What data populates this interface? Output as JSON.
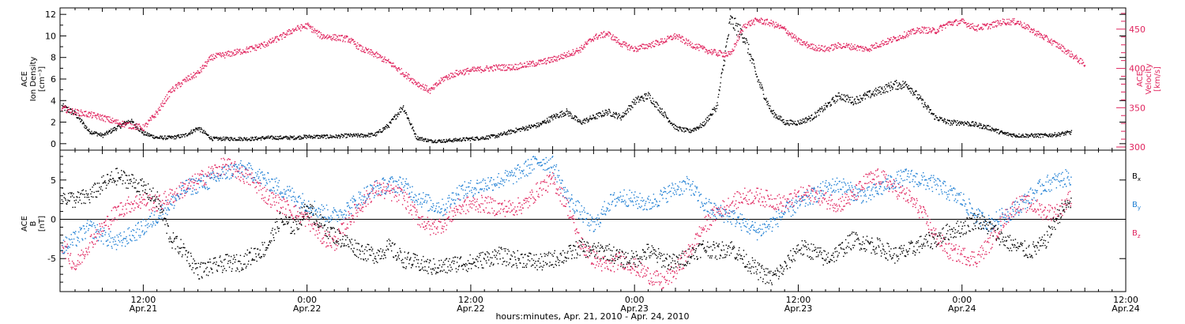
{
  "colors": {
    "black": "#000000",
    "red": "#e0245e",
    "blue": "#1f7fd4"
  },
  "x_axis": {
    "xlabel": "hours:minutes, Apr. 21, 2010 - Apr. 24, 2010",
    "ticks": [
      {
        "time": "12:00",
        "date": "Apr.21"
      },
      {
        "time": "0:00",
        "date": "Apr.22"
      },
      {
        "time": "12:00",
        "date": "Apr.22"
      },
      {
        "time": "0:00",
        "date": "Apr.23"
      },
      {
        "time": "12:00",
        "date": "Apr.23"
      },
      {
        "time": "0:00",
        "date": "Apr.24"
      },
      {
        "time": "12:00",
        "date": "Apr.24"
      }
    ]
  },
  "chart_data": [
    {
      "type": "scatter",
      "ylabel_left": [
        "ACE",
        "Ion Density",
        "[cm⁻³]"
      ],
      "ylabel_right": [
        "ACE",
        "Velocity",
        "[km/s]"
      ],
      "x_unit": "hours since 2010-04-21 00:00",
      "xlim": [
        5.9,
        84.0
      ],
      "ylim_left": [
        -0.6,
        12.6
      ],
      "yticks_left": [
        "0",
        "2",
        "4",
        "6",
        "8",
        "10",
        "12"
      ],
      "ylim_right": [
        296,
        477
      ],
      "yticks_right": [
        "300",
        "350",
        "400",
        "450"
      ],
      "grid": false,
      "series": [
        {
          "name": "Ion Density",
          "color": "black",
          "axis": "left",
          "x": [
            6,
            7,
            8,
            9,
            10,
            11,
            12,
            13,
            14,
            15,
            16,
            17,
            18,
            19,
            20,
            21,
            22,
            23,
            24,
            25,
            26,
            27,
            28,
            29,
            30,
            31,
            32,
            33,
            34,
            35,
            36,
            37,
            38,
            39,
            40,
            41,
            42,
            43,
            44,
            45,
            46,
            47,
            48,
            49,
            50,
            51,
            52,
            53,
            54,
            55,
            56,
            57,
            58,
            59,
            60,
            61,
            62,
            63,
            64,
            65,
            66,
            67,
            68,
            69,
            70,
            71,
            72,
            73,
            74,
            75,
            76,
            77,
            78,
            79,
            80
          ],
          "y": [
            3.5,
            2.8,
            1.2,
            0.8,
            1.5,
            2.2,
            1.0,
            0.6,
            0.6,
            0.8,
            1.5,
            0.5,
            0.5,
            0.5,
            0.5,
            0.6,
            0.6,
            0.6,
            0.7,
            0.7,
            0.7,
            0.8,
            0.8,
            0.9,
            1.8,
            3.5,
            0.6,
            0.3,
            0.3,
            0.4,
            0.5,
            0.6,
            0.8,
            1.2,
            1.5,
            1.8,
            2.5,
            3.0,
            2.0,
            2.5,
            3.0,
            2.5,
            4.0,
            4.5,
            3.0,
            1.5,
            1.2,
            1.8,
            3.5,
            11.5,
            10.0,
            6.0,
            3.0,
            2.0,
            2.0,
            2.5,
            3.5,
            4.5,
            4.0,
            4.5,
            5.0,
            5.5,
            5.5,
            4.0,
            2.5,
            2.0,
            2.0,
            1.8,
            1.5,
            1.0,
            0.8,
            0.8,
            0.8,
            0.9,
            1.1
          ]
        },
        {
          "name": "Velocity",
          "color": "red",
          "axis": "right",
          "x": [
            6,
            7,
            8,
            9,
            10,
            11,
            12,
            13,
            14,
            15,
            16,
            17,
            18,
            19,
            20,
            21,
            22,
            23,
            24,
            25,
            26,
            27,
            28,
            29,
            30,
            31,
            32,
            33,
            34,
            35,
            36,
            37,
            38,
            39,
            40,
            41,
            42,
            43,
            44,
            45,
            46,
            47,
            48,
            49,
            50,
            51,
            52,
            53,
            54,
            55,
            56,
            57,
            58,
            59,
            60,
            61,
            62,
            63,
            64,
            65,
            66,
            67,
            68,
            69,
            70,
            71,
            72,
            73,
            74,
            75,
            76,
            77,
            78,
            79,
            80,
            81
          ],
          "y": [
            350,
            345,
            342,
            338,
            332,
            328,
            325,
            345,
            372,
            385,
            395,
            415,
            418,
            422,
            426,
            432,
            440,
            450,
            455,
            442,
            440,
            438,
            425,
            418,
            408,
            395,
            382,
            372,
            388,
            395,
            398,
            400,
            402,
            402,
            405,
            408,
            412,
            418,
            425,
            440,
            445,
            432,
            425,
            430,
            435,
            442,
            432,
            425,
            420,
            418,
            455,
            462,
            458,
            450,
            435,
            428,
            425,
            430,
            428,
            425,
            432,
            438,
            445,
            450,
            448,
            458,
            460,
            452,
            455,
            460,
            460,
            450,
            440,
            430,
            418,
            405
          ]
        }
      ]
    },
    {
      "type": "scatter",
      "ylabel": [
        "ACE",
        "B",
        "[nT]"
      ],
      "x_unit": "hours since 2010-04-21 00:00",
      "xlim": [
        5.9,
        84.0
      ],
      "ylim": [
        -9.2,
        8.8
      ],
      "yticks": [
        "-5",
        "0",
        "5"
      ],
      "zero_line": true,
      "legend_position": "right",
      "series": [
        {
          "name": "B",
          "subscript": "x",
          "color": "black",
          "x": [
            6,
            7,
            8,
            9,
            10,
            11,
            12,
            13,
            14,
            15,
            16,
            17,
            18,
            19,
            20,
            21,
            22,
            23,
            24,
            25,
            26,
            27,
            28,
            29,
            30,
            31,
            32,
            33,
            34,
            35,
            36,
            37,
            38,
            39,
            40,
            41,
            42,
            43,
            44,
            45,
            46,
            47,
            48,
            49,
            50,
            51,
            52,
            53,
            54,
            55,
            56,
            57,
            58,
            59,
            60,
            61,
            62,
            63,
            64,
            65,
            66,
            67,
            68,
            69,
            70,
            71,
            72,
            73,
            74,
            75,
            76,
            77,
            78,
            79,
            80
          ],
          "y": [
            3,
            2.5,
            3,
            4.5,
            5.5,
            5.0,
            4.0,
            2.5,
            -2.5,
            -4.0,
            -6.5,
            -6.0,
            -5.5,
            -5.5,
            -4.5,
            -3.5,
            0,
            -1.0,
            1.5,
            -0.5,
            -2.0,
            -3.0,
            -4.0,
            -4.5,
            -3.5,
            -5.0,
            -5.5,
            -6.0,
            -6.0,
            -5.5,
            -5.5,
            -5.0,
            -4.5,
            -5.0,
            -5.0,
            -5.5,
            -5.0,
            -4.5,
            -3.5,
            -4.0,
            -4.0,
            -5.0,
            -5.0,
            -4.0,
            -5.0,
            -5.5,
            -4.5,
            -3.5,
            -4.0,
            -3.5,
            -5.0,
            -6.5,
            -7.5,
            -6.0,
            -3.5,
            -4.0,
            -5.0,
            -4.0,
            -2.5,
            -3.0,
            -3.5,
            -4.5,
            -4.0,
            -3.0,
            -2.5,
            -1.5,
            -1.0,
            0.0,
            -1.0,
            -2.5,
            -3.5,
            -4.0,
            -3.0,
            0.5,
            2.5
          ]
        },
        {
          "name": "B",
          "subscript": "y",
          "color": "blue",
          "x": [
            6,
            7,
            8,
            9,
            10,
            11,
            12,
            13,
            14,
            15,
            16,
            17,
            18,
            19,
            20,
            21,
            22,
            23,
            24,
            25,
            26,
            27,
            28,
            29,
            30,
            31,
            32,
            33,
            34,
            35,
            36,
            37,
            38,
            39,
            40,
            41,
            42,
            43,
            44,
            45,
            46,
            47,
            48,
            49,
            50,
            51,
            52,
            53,
            54,
            55,
            56,
            57,
            58,
            59,
            60,
            61,
            62,
            63,
            64,
            65,
            66,
            67,
            68,
            69,
            70,
            71,
            72,
            73,
            74,
            75,
            76,
            77,
            78,
            79,
            80
          ],
          "y": [
            -3.5,
            -2.5,
            -1.0,
            -2.0,
            -3.0,
            -2.0,
            -1.0,
            0.5,
            2.0,
            4.0,
            4.5,
            5.0,
            6.0,
            6.5,
            6.0,
            5.0,
            4.0,
            3.0,
            2.0,
            1.0,
            0.5,
            1.5,
            3.0,
            4.0,
            4.5,
            4.5,
            3.0,
            2.0,
            1.5,
            3.5,
            4.0,
            4.5,
            5.0,
            5.5,
            6.5,
            7.5,
            7.0,
            3.0,
            1.0,
            -1.0,
            2.0,
            3.0,
            2.5,
            2.0,
            3.0,
            4.0,
            4.5,
            2.0,
            1.0,
            0.5,
            -0.5,
            -1.5,
            -0.5,
            1.0,
            2.0,
            3.0,
            4.0,
            4.5,
            3.5,
            3.0,
            4.0,
            5.0,
            5.5,
            5.0,
            4.5,
            3.5,
            2.5,
            0.5,
            -0.5,
            0.5,
            1.5,
            3.0,
            4.5,
            5.0,
            5.5
          ]
        },
        {
          "name": "B",
          "subscript": "z",
          "color": "red",
          "x": [
            6,
            7,
            8,
            9,
            10,
            11,
            12,
            13,
            14,
            15,
            16,
            17,
            18,
            19,
            20,
            21,
            22,
            23,
            24,
            25,
            26,
            27,
            28,
            29,
            30,
            31,
            32,
            33,
            34,
            35,
            36,
            37,
            38,
            39,
            40,
            41,
            42,
            43,
            44,
            45,
            46,
            47,
            48,
            49,
            50,
            51,
            52,
            53,
            54,
            55,
            56,
            57,
            58,
            59,
            60,
            61,
            62,
            63,
            64,
            65,
            66,
            67,
            68,
            69,
            70,
            71,
            72,
            73,
            74,
            75,
            76,
            77,
            78,
            79,
            80
          ],
          "y": [
            -3.0,
            -6.0,
            -3.0,
            -1.0,
            1.0,
            2.0,
            2.5,
            2.0,
            3.0,
            4.0,
            5.0,
            6.0,
            7.0,
            6.0,
            5.0,
            3.0,
            2.0,
            1.0,
            0.0,
            -2.0,
            -3.0,
            0.0,
            2.0,
            4.0,
            3.5,
            3.0,
            0.5,
            -1.0,
            -0.5,
            1.5,
            2.0,
            2.0,
            1.5,
            1.5,
            2.0,
            4.0,
            5.0,
            2.0,
            -3.0,
            -5.0,
            -6.0,
            -5.0,
            -6.0,
            -7.0,
            -8.0,
            -6.5,
            -4.0,
            -1.0,
            1.0,
            2.0,
            3.0,
            3.0,
            2.5,
            2.0,
            3.0,
            3.5,
            2.5,
            2.0,
            3.0,
            5.0,
            5.5,
            4.0,
            3.0,
            1.0,
            -2.0,
            -4.0,
            -4.5,
            -5.0,
            -3.0,
            0.0,
            2.0,
            2.0,
            1.0,
            1.0,
            3.0
          ]
        }
      ]
    }
  ]
}
